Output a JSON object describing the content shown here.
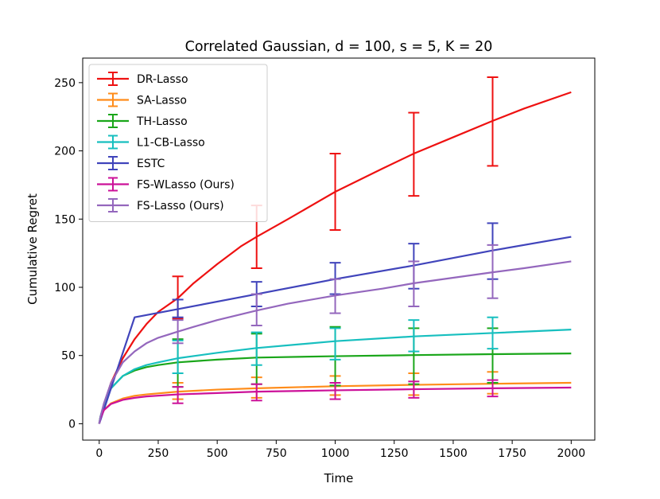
{
  "chart_data": {
    "type": "line",
    "title": "Correlated Gaussian, d = 100, s = 5, K = 20",
    "xlabel": "Time",
    "ylabel": "Cumulative Regret",
    "xlim": [
      -70,
      2100
    ],
    "ylim": [
      -12,
      268
    ],
    "xticks": [
      0,
      250,
      500,
      750,
      1000,
      1250,
      1500,
      1750,
      2000
    ],
    "yticks": [
      0,
      50,
      100,
      150,
      200,
      250
    ],
    "legend_position": "top-left",
    "series": [
      {
        "name": "DR-Lasso",
        "color": "#ee1111",
        "x": [
          0,
          5,
          20,
          50,
          100,
          150,
          200,
          250,
          333,
          400,
          500,
          600,
          667,
          800,
          1000,
          1200,
          1333,
          1500,
          1667,
          1800,
          2000
        ],
        "y": [
          0,
          4,
          14,
          30,
          48,
          62,
          73,
          82,
          92,
          103,
          117,
          130,
          137,
          150,
          170,
          187,
          198,
          210,
          222,
          231,
          243
        ],
        "errorbars": [
          {
            "x": 333,
            "low": 77,
            "high": 108
          },
          {
            "x": 667,
            "low": 114,
            "high": 160
          },
          {
            "x": 1000,
            "low": 142,
            "high": 198
          },
          {
            "x": 1333,
            "low": 167,
            "high": 228
          },
          {
            "x": 1667,
            "low": 189,
            "high": 254
          }
        ]
      },
      {
        "name": "SA-Lasso",
        "color": "#ff8c1a",
        "x": [
          0,
          5,
          20,
          50,
          100,
          150,
          200,
          333,
          500,
          667,
          1000,
          1333,
          1667,
          2000
        ],
        "y": [
          0,
          4,
          10,
          15,
          18.5,
          20.5,
          21.5,
          23.5,
          25,
          26,
          27.5,
          28.5,
          29.3,
          30
        ],
        "errorbars": [
          {
            "x": 333,
            "low": 18,
            "high": 30
          },
          {
            "x": 667,
            "low": 19,
            "high": 34
          },
          {
            "x": 1000,
            "low": 21,
            "high": 35
          },
          {
            "x": 1333,
            "low": 21,
            "high": 37
          },
          {
            "x": 1667,
            "low": 22,
            "high": 38
          }
        ]
      },
      {
        "name": "TH-Lasso",
        "color": "#1aa61a",
        "x": [
          0,
          5,
          20,
          50,
          100,
          150,
          200,
          250,
          333,
          500,
          667,
          1000,
          1333,
          1667,
          2000
        ],
        "y": [
          0,
          5,
          14,
          26,
          35,
          39,
          41.5,
          43,
          45,
          47,
          48.5,
          49.5,
          50.3,
          51,
          51.5
        ],
        "errorbars": [
          {
            "x": 333,
            "low": 27,
            "high": 62
          },
          {
            "x": 667,
            "low": 29,
            "high": 66
          },
          {
            "x": 1000,
            "low": 28,
            "high": 71
          },
          {
            "x": 1333,
            "low": 29,
            "high": 70
          },
          {
            "x": 1667,
            "low": 30,
            "high": 70
          }
        ]
      },
      {
        "name": "L1-CB-Lasso",
        "color": "#17bfbf",
        "x": [
          0,
          5,
          20,
          50,
          100,
          150,
          200,
          250,
          333,
          500,
          667,
          1000,
          1333,
          1667,
          2000
        ],
        "y": [
          0,
          5,
          14,
          26,
          35,
          40,
          43,
          45,
          48,
          52,
          55.5,
          60.5,
          64,
          66.5,
          69
        ],
        "errorbars": [
          {
            "x": 333,
            "low": 37,
            "high": 61
          },
          {
            "x": 667,
            "low": 43,
            "high": 67
          },
          {
            "x": 1000,
            "low": 47,
            "high": 70
          },
          {
            "x": 1333,
            "low": 53,
            "high": 76
          },
          {
            "x": 1667,
            "low": 55,
            "high": 78
          }
        ]
      },
      {
        "name": "ESTC",
        "color": "#4044bb",
        "x": [
          0,
          150,
          333,
          667,
          1000,
          1333,
          1667,
          2000
        ],
        "y": [
          0,
          78,
          84,
          95,
          106,
          116,
          127,
          137
        ],
        "errorbars": [
          {
            "x": 333,
            "low": 78,
            "high": 91
          },
          {
            "x": 667,
            "low": 86,
            "high": 104
          },
          {
            "x": 1000,
            "low": 95,
            "high": 118
          },
          {
            "x": 1333,
            "low": 99,
            "high": 132
          },
          {
            "x": 1667,
            "low": 106,
            "high": 147
          }
        ]
      },
      {
        "name": "FS-WLasso (Ours)",
        "color": "#cc1199",
        "x": [
          0,
          5,
          20,
          50,
          100,
          150,
          200,
          333,
          500,
          667,
          1000,
          1333,
          1667,
          2000
        ],
        "y": [
          0,
          4,
          10,
          14.5,
          17.5,
          19,
          20,
          21.5,
          22.5,
          23.5,
          24.5,
          25.3,
          26,
          26.5
        ],
        "errorbars": [
          {
            "x": 333,
            "low": 15,
            "high": 27
          },
          {
            "x": 667,
            "low": 17,
            "high": 29
          },
          {
            "x": 1000,
            "low": 18,
            "high": 30
          },
          {
            "x": 1333,
            "low": 19,
            "high": 31
          },
          {
            "x": 1667,
            "low": 20,
            "high": 32
          }
        ]
      },
      {
        "name": "FS-Lasso (Ours)",
        "color": "#9467bd",
        "x": [
          0,
          5,
          20,
          50,
          100,
          150,
          200,
          250,
          333,
          400,
          500,
          667,
          800,
          1000,
          1200,
          1333,
          1500,
          1667,
          1800,
          2000
        ],
        "y": [
          0,
          5,
          15,
          30,
          45,
          53,
          59,
          63,
          67.5,
          71,
          76,
          83,
          88,
          94,
          99,
          103,
          107,
          111,
          114,
          119
        ],
        "errorbars": [
          {
            "x": 333,
            "low": 59,
            "high": 76
          },
          {
            "x": 667,
            "low": 72,
            "high": 95
          },
          {
            "x": 1000,
            "low": 81,
            "high": 106
          },
          {
            "x": 1333,
            "low": 86,
            "high": 119
          },
          {
            "x": 1667,
            "low": 92,
            "high": 131
          }
        ]
      }
    ]
  }
}
